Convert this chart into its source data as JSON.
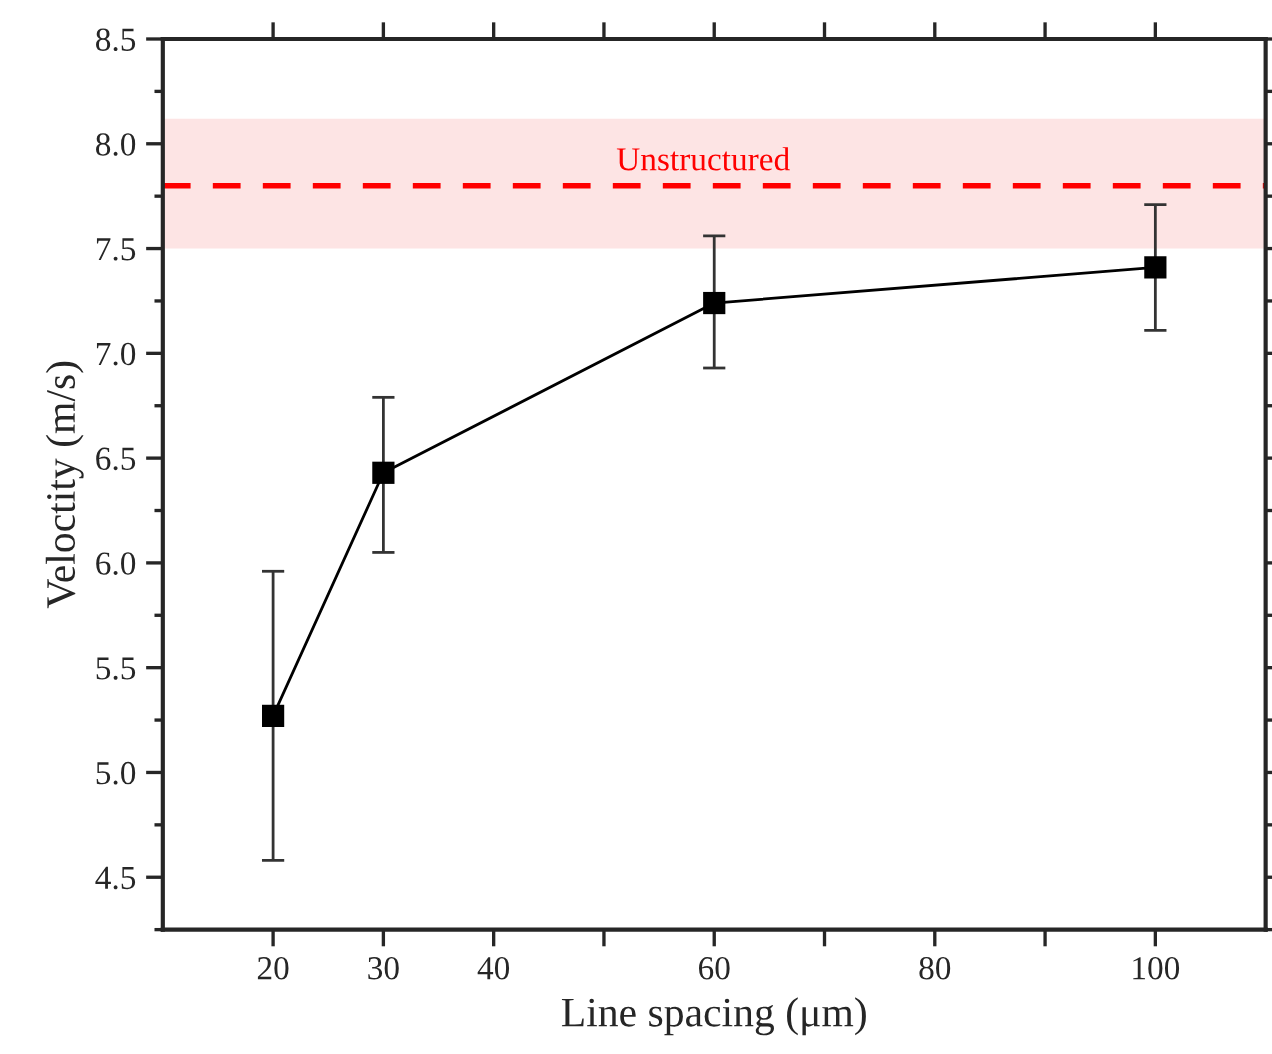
{
  "chart_data": {
    "type": "line",
    "xlabel": "Line spacing (μm)",
    "ylabel": "Veloctity (m/s)",
    "x": [
      20,
      30,
      60,
      100
    ],
    "series": [
      {
        "color": "#000000",
        "values": [
          5.27,
          6.43,
          7.24,
          7.41
        ],
        "errors": [
          [
            4.58,
            5.96
          ],
          [
            6.05,
            6.79
          ],
          [
            6.93,
            7.56
          ],
          [
            7.11,
            7.71
          ]
        ]
      }
    ],
    "marker": "square",
    "line_style": "solid",
    "xlim": [
      10,
      110
    ],
    "xticks": [
      20,
      30,
      40,
      {
        "value": 50,
        "label": null
      },
      60,
      {
        "value": 70,
        "label": null
      },
      80,
      {
        "value": 90,
        "label": null
      },
      100
    ],
    "ylim": [
      4.25,
      8.5
    ],
    "yticks": [
      4.5,
      {
        "value": 5,
        "label": "5.0"
      },
      5.5,
      {
        "value": 6,
        "label": "6.0"
      },
      6.5,
      {
        "value": 7,
        "label": "7.0"
      },
      7.5,
      {
        "value": 8,
        "label": "8.0"
      },
      8.5
    ],
    "ref_lines": [
      {
        "axis": "y",
        "value": 7.8,
        "label": "Unstructured",
        "color": "#ff0000",
        "line_style": "dashed"
      }
    ],
    "bands": [
      {
        "axis": "y",
        "from": 7.5,
        "to": 8.12,
        "color": "#fde4e4"
      }
    ],
    "grid": false
  }
}
